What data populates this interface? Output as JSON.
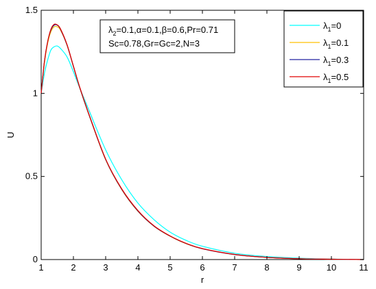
{
  "chart_data": {
    "type": "line",
    "title": "",
    "xlabel": "r",
    "ylabel": "U",
    "xlim": [
      1,
      11
    ],
    "ylim": [
      0,
      1.5
    ],
    "xticks": [
      "1",
      "2",
      "3",
      "4",
      "5",
      "6",
      "7",
      "8",
      "9",
      "10",
      "11"
    ],
    "yticks": [
      "0",
      "0.5",
      "1",
      "1.5"
    ],
    "grid": false,
    "legend_position": "top-right",
    "annotation": {
      "line1": {
        "lam": "λ",
        "sub": "2",
        "rest": "=0.1,α=0.1,β=0.6,Pr=0.71"
      },
      "line2": "Sc=0.78,Gr=Gc=2,N=3"
    },
    "series": [
      {
        "name": "λ1=0",
        "legend": {
          "lam": "λ",
          "sub": "1",
          "rest": "=0"
        },
        "color": "#00ffff",
        "x": [
          1.0,
          1.1,
          1.2,
          1.3,
          1.4,
          1.5,
          1.6,
          1.8,
          2.0,
          2.2,
          2.5,
          3.0,
          3.5,
          4.0,
          4.5,
          5.0,
          5.5,
          6.0,
          7.0,
          8.0,
          9.0,
          10.0,
          11.0
        ],
        "values": [
          1.0,
          1.12,
          1.2,
          1.26,
          1.28,
          1.285,
          1.27,
          1.22,
          1.13,
          1.03,
          0.89,
          0.66,
          0.48,
          0.34,
          0.24,
          0.165,
          0.115,
          0.08,
          0.038,
          0.018,
          0.008,
          0.003,
          0.0
        ]
      },
      {
        "name": "λ1=0.1",
        "legend": {
          "lam": "λ",
          "sub": "1",
          "rest": "=0.1"
        },
        "color": "#ffc000",
        "x": [
          1.0,
          1.1,
          1.2,
          1.3,
          1.4,
          1.5,
          1.6,
          1.8,
          2.0,
          2.2,
          2.5,
          3.0,
          3.5,
          4.0,
          4.5,
          5.0,
          5.5,
          6.0,
          7.0,
          8.0,
          9.0,
          10.0,
          11.0
        ],
        "values": [
          1.0,
          1.18,
          1.3,
          1.37,
          1.4,
          1.4,
          1.38,
          1.29,
          1.16,
          1.03,
          0.86,
          0.6,
          0.42,
          0.29,
          0.2,
          0.14,
          0.095,
          0.065,
          0.03,
          0.013,
          0.005,
          0.002,
          0.0
        ]
      },
      {
        "name": "λ1=0.3",
        "legend": {
          "lam": "λ",
          "sub": "1",
          "rest": "=0.3"
        },
        "color": "#2020a0",
        "x": [
          1.0,
          1.1,
          1.2,
          1.3,
          1.4,
          1.5,
          1.6,
          1.8,
          2.0,
          2.2,
          2.5,
          3.0,
          3.5,
          4.0,
          4.5,
          5.0,
          5.5,
          6.0,
          7.0,
          8.0,
          9.0,
          10.0,
          11.0
        ],
        "values": [
          1.0,
          1.19,
          1.31,
          1.38,
          1.41,
          1.41,
          1.385,
          1.292,
          1.162,
          1.032,
          0.862,
          0.602,
          0.422,
          0.292,
          0.201,
          0.141,
          0.096,
          0.065,
          0.03,
          0.013,
          0.005,
          0.002,
          0.0
        ]
      },
      {
        "name": "λ1=0.5",
        "legend": {
          "lam": "λ",
          "sub": "1",
          "rest": "=0.5"
        },
        "color": "#e00000",
        "x": [
          1.0,
          1.1,
          1.2,
          1.3,
          1.4,
          1.5,
          1.6,
          1.8,
          2.0,
          2.2,
          2.5,
          3.0,
          3.5,
          4.0,
          4.5,
          5.0,
          5.5,
          6.0,
          7.0,
          8.0,
          9.0,
          10.0,
          11.0
        ],
        "values": [
          1.0,
          1.19,
          1.31,
          1.385,
          1.415,
          1.412,
          1.388,
          1.295,
          1.165,
          1.035,
          0.865,
          0.605,
          0.425,
          0.295,
          0.203,
          0.142,
          0.097,
          0.066,
          0.031,
          0.013,
          0.005,
          0.002,
          0.0
        ]
      }
    ]
  }
}
